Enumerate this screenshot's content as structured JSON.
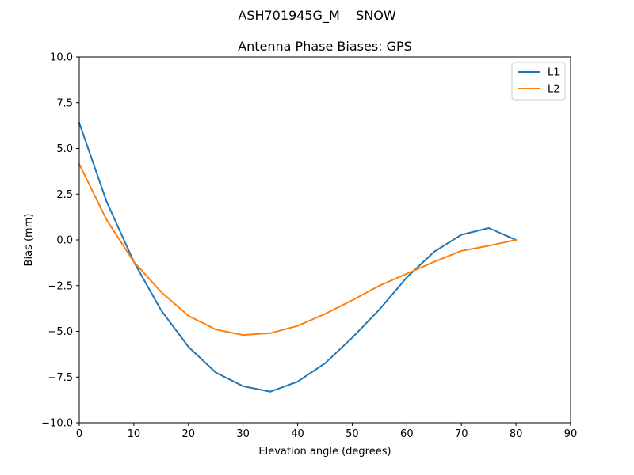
{
  "figure": {
    "suptitle": "ASH701945G_M    SNOW"
  },
  "chart_data": {
    "type": "line",
    "title": "Antenna Phase Biases: GPS",
    "xlabel": "Elevation angle (degrees)",
    "ylabel": "Bias (mm)",
    "xlim": [
      0,
      90
    ],
    "ylim": [
      -10,
      10
    ],
    "xticks": [
      0,
      10,
      20,
      30,
      40,
      50,
      60,
      70,
      80,
      90
    ],
    "xtick_labels": [
      "0",
      "10",
      "20",
      "30",
      "40",
      "50",
      "60",
      "70",
      "80",
      "90"
    ],
    "yticks": [
      -10,
      -7.5,
      -5,
      -2.5,
      0,
      2.5,
      5,
      7.5,
      10
    ],
    "ytick_labels": [
      "−10.0",
      "−7.5",
      "−5.0",
      "−2.5",
      "0.0",
      "2.5",
      "5.0",
      "7.5",
      "10.0"
    ],
    "grid": false,
    "legend_position": "top-right",
    "x": [
      0,
      5,
      10,
      15,
      20,
      25,
      30,
      35,
      40,
      45,
      50,
      55,
      60,
      65,
      70,
      75,
      80
    ],
    "series": [
      {
        "name": "L1",
        "color": "#1f77b4",
        "values": [
          6.4,
          2.1,
          -1.2,
          -3.85,
          -5.85,
          -7.25,
          -8.0,
          -8.3,
          -7.75,
          -6.75,
          -5.35,
          -3.8,
          -2.05,
          -0.65,
          0.28,
          0.65,
          0.0
        ]
      },
      {
        "name": "L2",
        "color": "#ff7f0e",
        "values": [
          4.15,
          1.1,
          -1.2,
          -2.85,
          -4.15,
          -4.9,
          -5.2,
          -5.1,
          -4.7,
          -4.05,
          -3.3,
          -2.5,
          -1.85,
          -1.2,
          -0.6,
          -0.32,
          0.0
        ]
      }
    ]
  }
}
